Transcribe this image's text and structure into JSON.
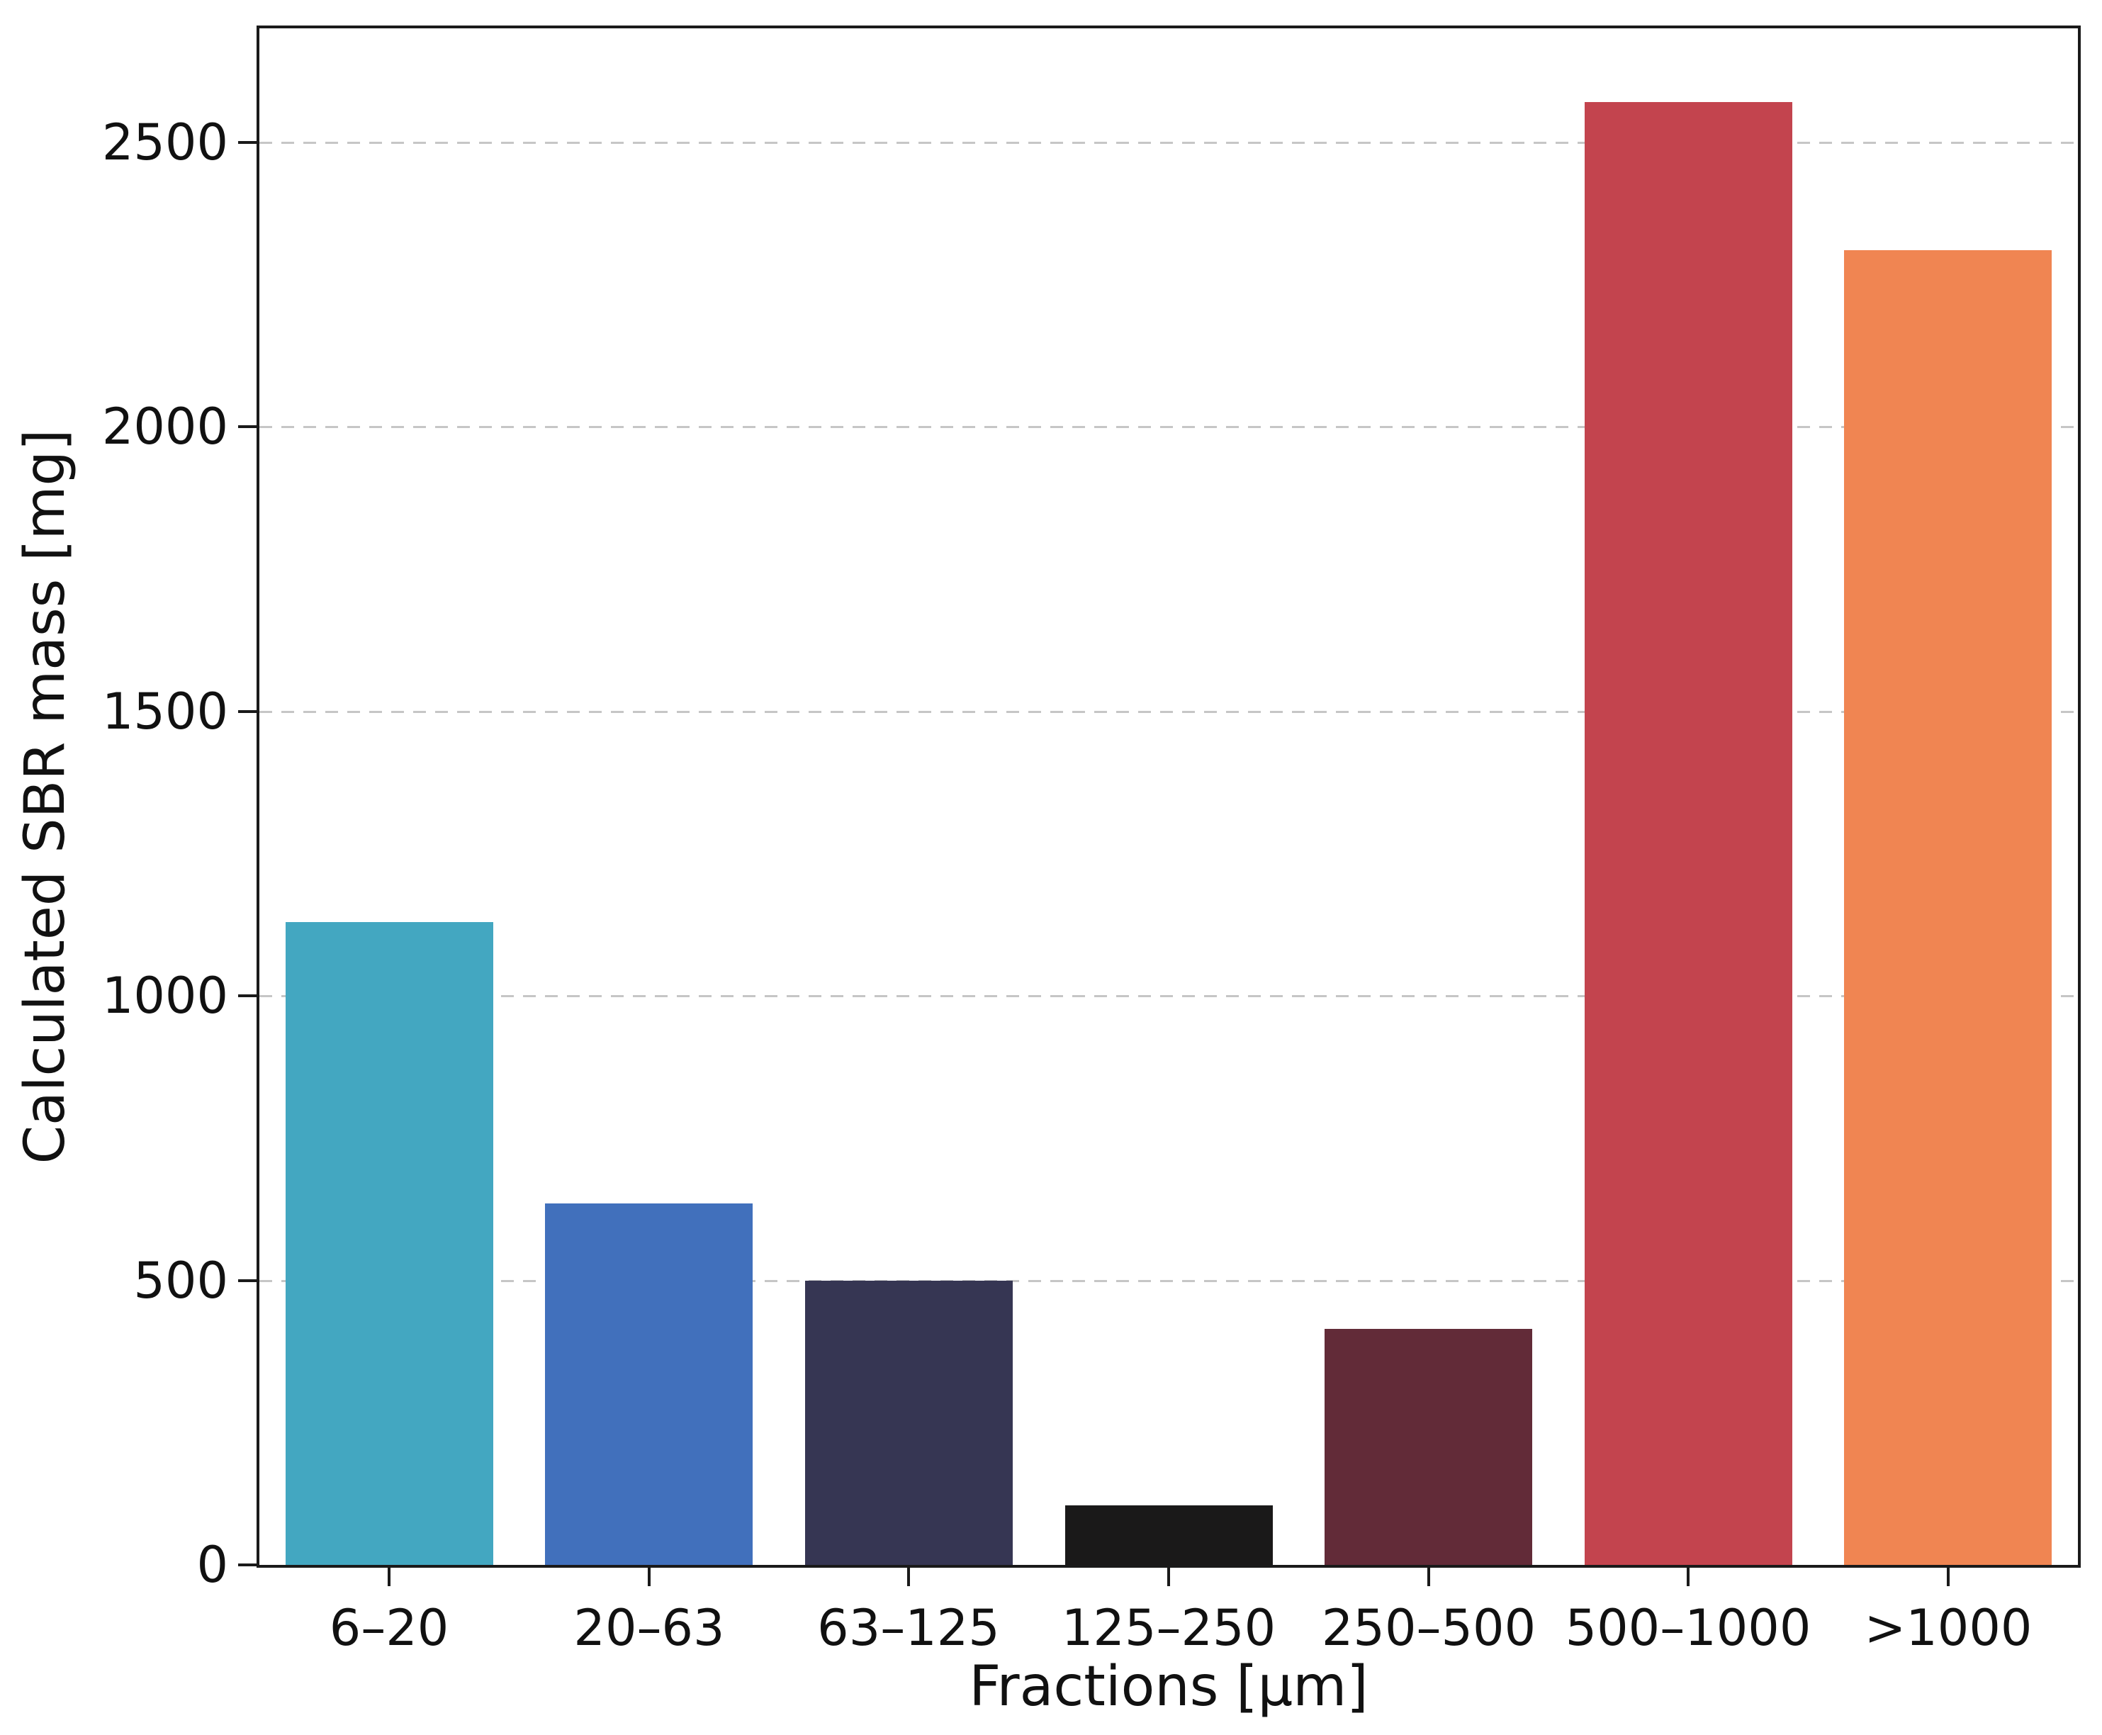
{
  "chart_data": {
    "type": "bar",
    "title": "",
    "xlabel": "Fractions [μm]",
    "ylabel": "Calculated SBR mass [mg]",
    "categories": [
      "6–20",
      "20–63",
      "63–125",
      "125–250",
      "250–500",
      "500–1000",
      ">1000"
    ],
    "values": [
      1130,
      635,
      500,
      105,
      415,
      2570,
      2310
    ],
    "bar_colors": [
      "#43A7C1",
      "#4170BC",
      "#363653",
      "#1A1919",
      "#622B38",
      "#C3444E",
      "#F08552"
    ],
    "ylim": [
      0,
      2700
    ],
    "yticks": [
      0,
      500,
      1000,
      1500,
      2000,
      2500
    ],
    "ytick_labels": [
      "0",
      "500",
      "1000",
      "1500",
      "2000",
      "2500"
    ],
    "grid": "horizontal dashed light-gray at y ticks",
    "legend": "none",
    "bar_relative_width": 0.8,
    "axis_color": "#1a1a1a",
    "gridline_color": "#c6c6c6",
    "background_color": "#ffffff"
  }
}
